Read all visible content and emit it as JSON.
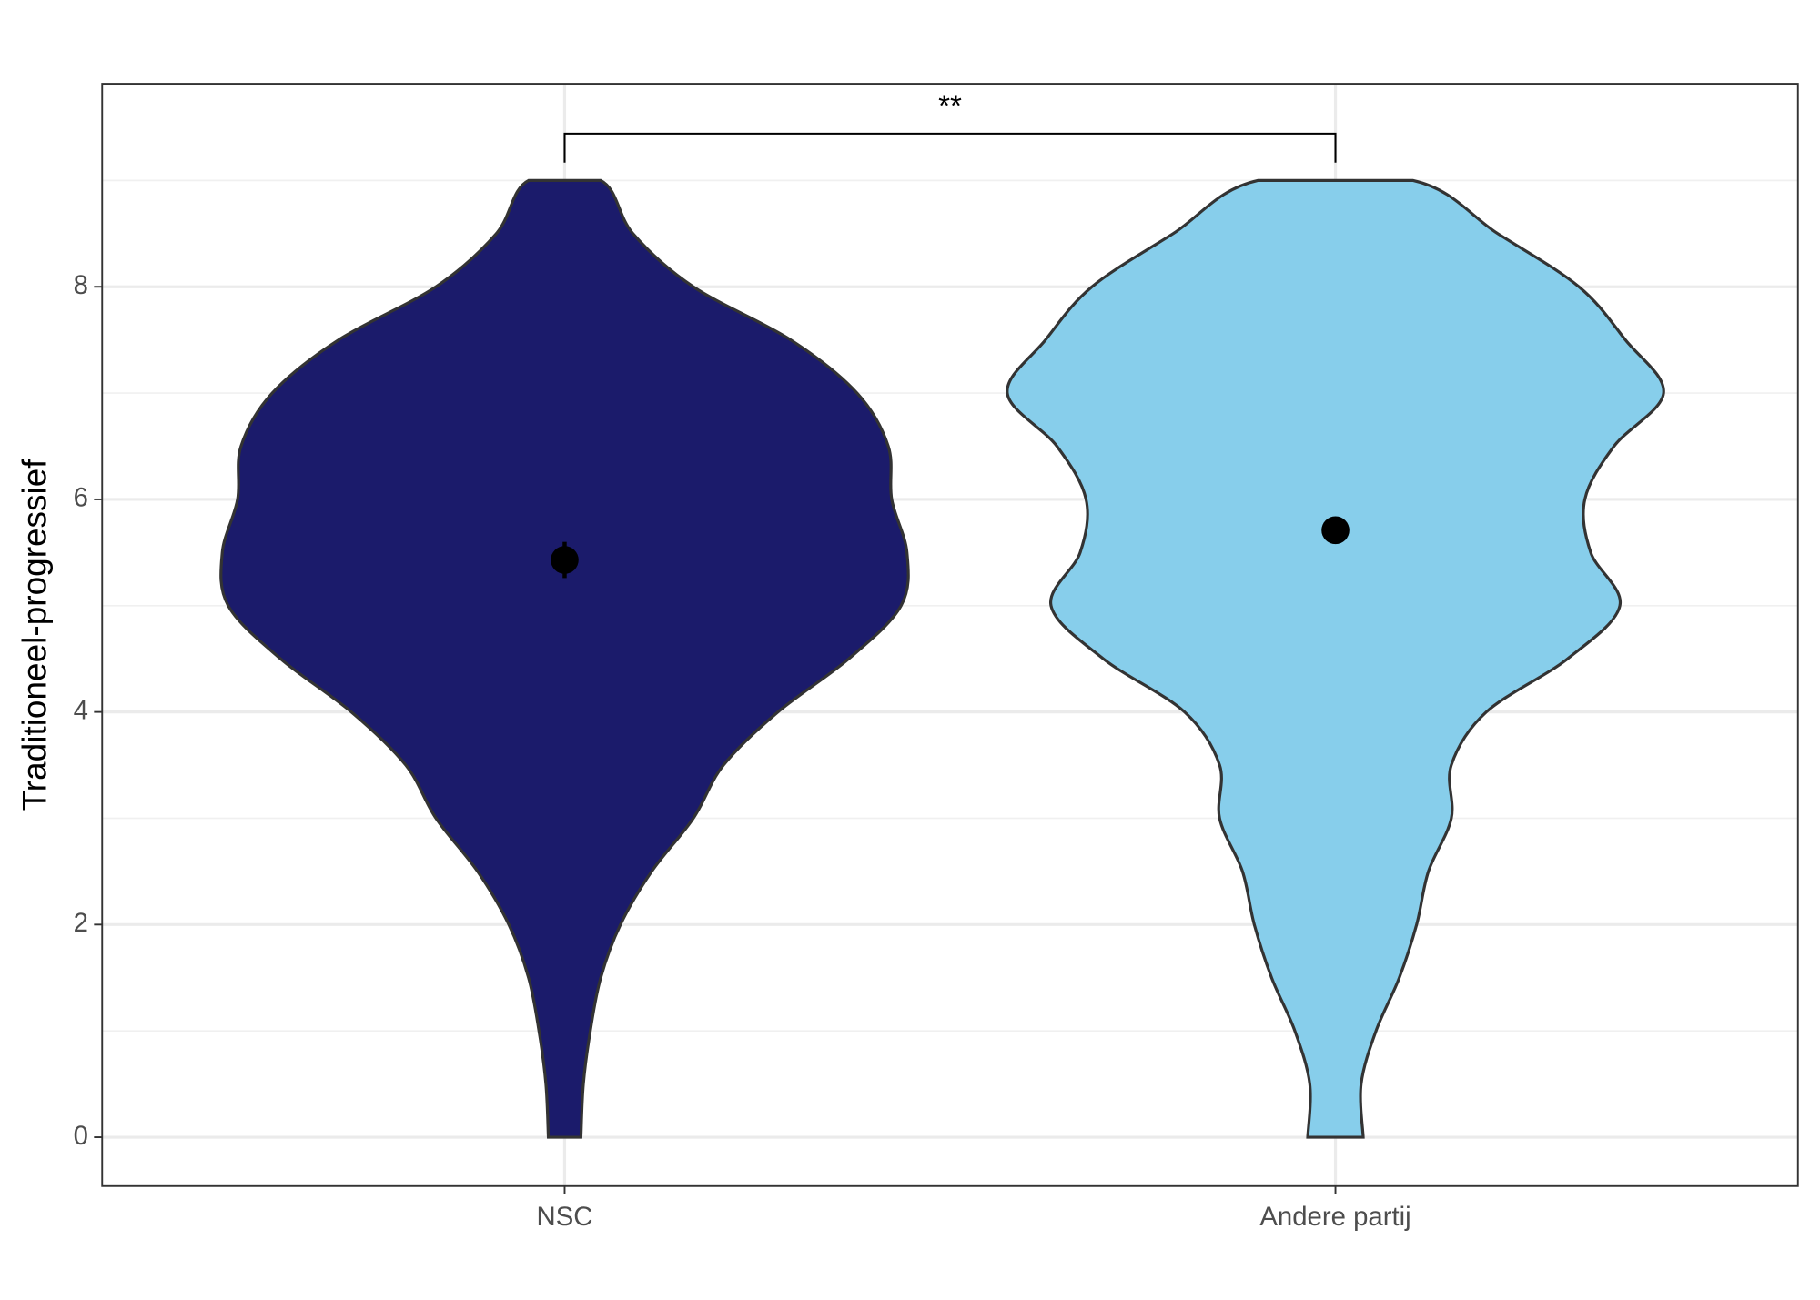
{
  "chart_data": {
    "type": "violin",
    "y_label": "Traditioneel-progressief",
    "categories": [
      "NSC",
      "Andere partij"
    ],
    "ylim": [
      -0.46,
      9.91
    ],
    "yticks": [
      0,
      2,
      4,
      6,
      8
    ],
    "grid": true,
    "density_y": [
      0,
      0.5,
      1,
      1.5,
      2,
      2.5,
      3,
      3.5,
      4,
      4.5,
      5,
      5.5,
      6,
      6.5,
      7,
      7.5,
      8,
      8.5,
      9
    ],
    "series": [
      {
        "color": "#1b1b6b",
        "mean": 5.43,
        "error": 0.17,
        "density": [
          0.047,
          0.054,
          0.074,
          0.104,
          0.161,
          0.251,
          0.371,
          0.458,
          0.615,
          0.819,
          0.97,
          0.987,
          0.943,
          0.933,
          0.843,
          0.652,
          0.371,
          0.197,
          0.104
        ]
      },
      {
        "color": "#87ceeb",
        "mean": 5.71,
        "error": 0.05,
        "density": [
          0.08,
          0.074,
          0.117,
          0.184,
          0.234,
          0.268,
          0.334,
          0.334,
          0.435,
          0.669,
          0.82,
          0.736,
          0.719,
          0.803,
          0.946,
          0.836,
          0.702,
          0.468,
          0.224
        ]
      }
    ],
    "significance": "**"
  }
}
